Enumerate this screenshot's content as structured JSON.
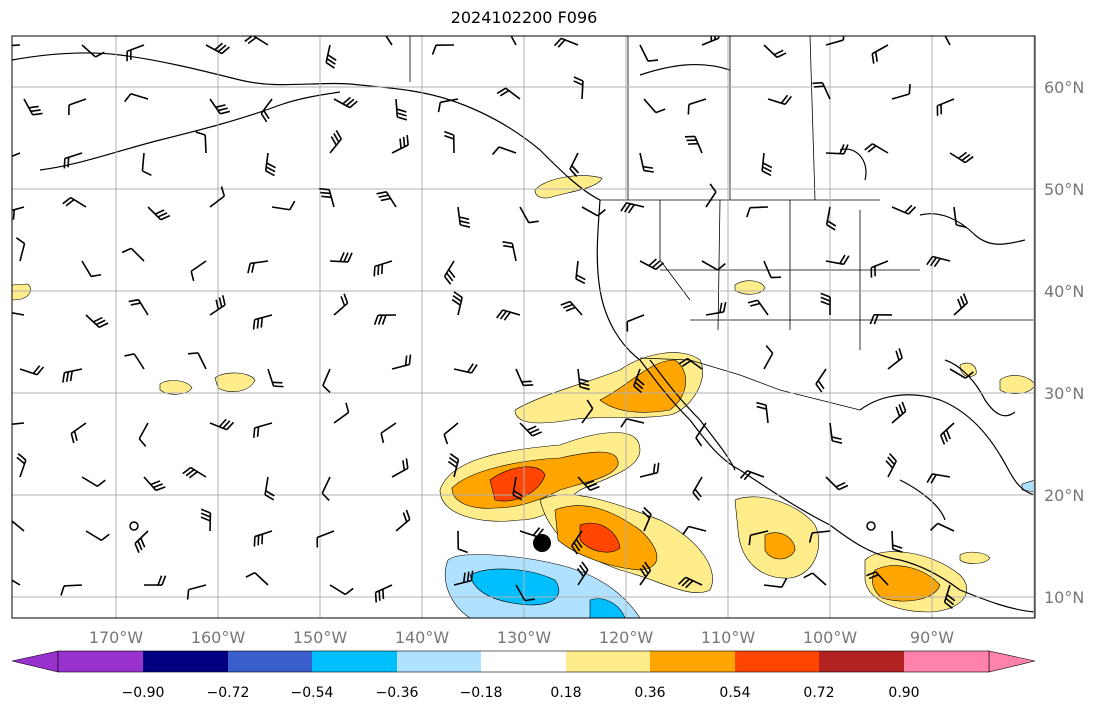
{
  "title": "2024102200 F096",
  "map": {
    "longitude_labels": [
      "170°W",
      "160°W",
      "150°W",
      "140°W",
      "130°W",
      "120°W",
      "110°W",
      "100°W",
      "90°W"
    ],
    "latitude_labels": [
      "60°N",
      "50°N",
      "40°N",
      "30°N",
      "20°N",
      "10°N"
    ],
    "gridlines": true,
    "storm_marker": {
      "lon": -128.3,
      "lat": 15.3,
      "symbol": "filled-circle"
    }
  },
  "colorbar": {
    "orientation": "horizontal",
    "extend": "both",
    "tick_labels": [
      "−0.90",
      "−0.72",
      "−0.54",
      "−0.36",
      "−0.18",
      "0.18",
      "0.36",
      "0.54",
      "0.72",
      "0.90"
    ],
    "colors": [
      "#9932cc",
      "#000080",
      "#3a5fcd",
      "#00bfff",
      "#b0e2ff",
      "#ffffff",
      "#ffec8b",
      "#ffa500",
      "#ff4500",
      "#b22222",
      "#ff82ab"
    ]
  }
}
